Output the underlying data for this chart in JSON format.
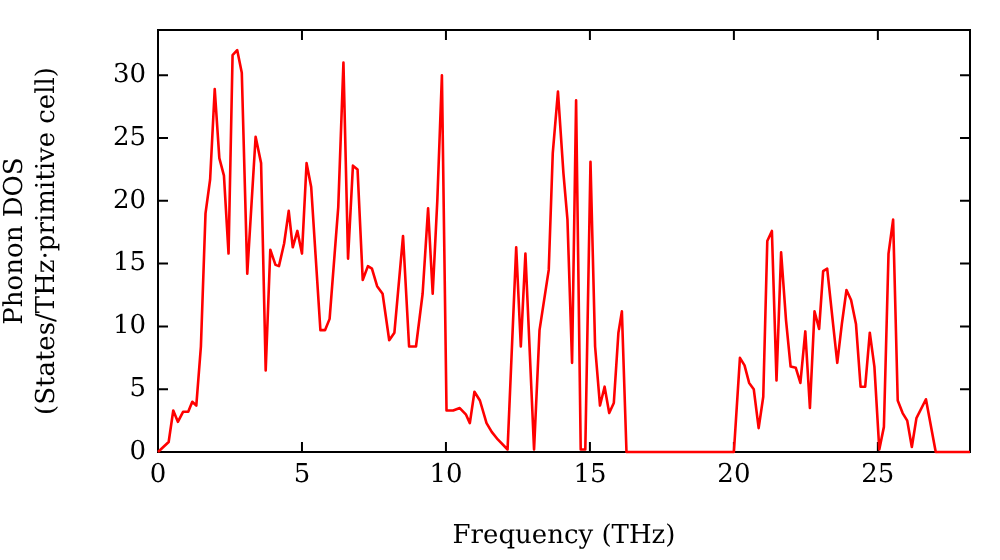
{
  "chart_data": {
    "type": "line",
    "xlabel": "Frequency (THz)",
    "ylabel": "Phonon DOS\n(States/THz·primitive cell)",
    "xlim": [
      0,
      28.2
    ],
    "ylim": [
      0,
      33.6
    ],
    "xticks": [
      0,
      5,
      10,
      15,
      20,
      25
    ],
    "yticks": [
      0,
      5,
      10,
      15,
      20,
      25,
      30
    ],
    "grid": false,
    "legend": false,
    "marker": "none",
    "line_style": "solid",
    "series": [
      {
        "color": "#ff0000",
        "x": [
          0,
          0.37,
          0.53,
          0.69,
          0.87,
          1.05,
          1.19,
          1.33,
          1.49,
          1.65,
          1.81,
          1.97,
          2.13,
          2.29,
          2.45,
          2.59,
          2.75,
          2.91,
          3.1,
          3.39,
          3.58,
          3.74,
          3.9,
          4.08,
          4.2,
          4.38,
          4.54,
          4.68,
          4.84,
          5.0,
          5.16,
          5.32,
          5.64,
          5.8,
          5.96,
          6.26,
          6.44,
          6.6,
          6.77,
          6.93,
          7.11,
          7.29,
          7.43,
          7.61,
          7.8,
          8.03,
          8.21,
          8.51,
          8.72,
          8.96,
          9.19,
          9.38,
          9.54,
          9.7,
          9.86,
          10.02,
          10.25,
          10.48,
          10.69,
          10.83,
          10.99,
          11.18,
          11.41,
          11.59,
          11.8,
          12.14,
          12.44,
          12.6,
          12.76,
          13.06,
          13.25,
          13.57,
          13.71,
          13.89,
          14.08,
          14.22,
          14.38,
          14.52,
          14.68,
          14.84,
          15.02,
          15.18,
          15.35,
          15.51,
          15.67,
          15.83,
          15.99,
          16.11,
          16.27,
          20,
          20.21,
          20.37,
          20.53,
          20.69,
          20.86,
          21.02,
          21.16,
          21.32,
          21.48,
          21.64,
          21.81,
          21.97,
          22.15,
          22.31,
          22.48,
          22.64,
          22.8,
          22.96,
          23.1,
          23.24,
          23.43,
          23.59,
          23.75,
          23.91,
          24.07,
          24.24,
          24.4,
          24.56,
          24.72,
          24.88,
          25.05,
          25.21,
          25.37,
          25.53,
          25.69,
          25.86,
          26.02,
          26.18,
          26.34,
          26.67,
          27.01,
          28.2
        ],
        "values": [
          0,
          0.8,
          3.3,
          2.4,
          3.2,
          3.2,
          4,
          3.7,
          8.4,
          19,
          21.7,
          28.9,
          23.4,
          22,
          15.8,
          31.6,
          32,
          30.2,
          14.2,
          25.1,
          23,
          6.5,
          16.1,
          14.9,
          14.8,
          16.6,
          19.2,
          16.3,
          17.6,
          15.8,
          23,
          21.1,
          9.7,
          9.7,
          10.6,
          19.5,
          31,
          15.4,
          22.8,
          22.5,
          13.7,
          14.8,
          14.6,
          13.2,
          12.6,
          8.9,
          9.5,
          17.2,
          8.4,
          8.4,
          12.6,
          19.4,
          12.6,
          20,
          30,
          3.3,
          3.3,
          3.5,
          3,
          2.3,
          4.8,
          4.1,
          2.3,
          1.6,
          1,
          0.2,
          16.3,
          8.4,
          15.8,
          0.2,
          9.7,
          14.5,
          23.8,
          28.7,
          22.2,
          18.5,
          7.1,
          28,
          0.2,
          0.2,
          23.1,
          8.4,
          3.7,
          5.2,
          3.1,
          3.9,
          9.5,
          11.2,
          0,
          0,
          7.5,
          6.9,
          5.5,
          5,
          1.9,
          4.4,
          16.8,
          17.6,
          5.7,
          15.9,
          10.5,
          6.8,
          6.7,
          5.5,
          9.6,
          3.5,
          11.2,
          9.8,
          14.4,
          14.6,
          10.5,
          7.1,
          10.2,
          12.9,
          12.1,
          10.2,
          5.2,
          5.2,
          9.5,
          6.8,
          0.2,
          2,
          15.8,
          18.5,
          4.1,
          3.1,
          2.5,
          0.4,
          2.7,
          4.2,
          0,
          0
        ]
      }
    ]
  }
}
